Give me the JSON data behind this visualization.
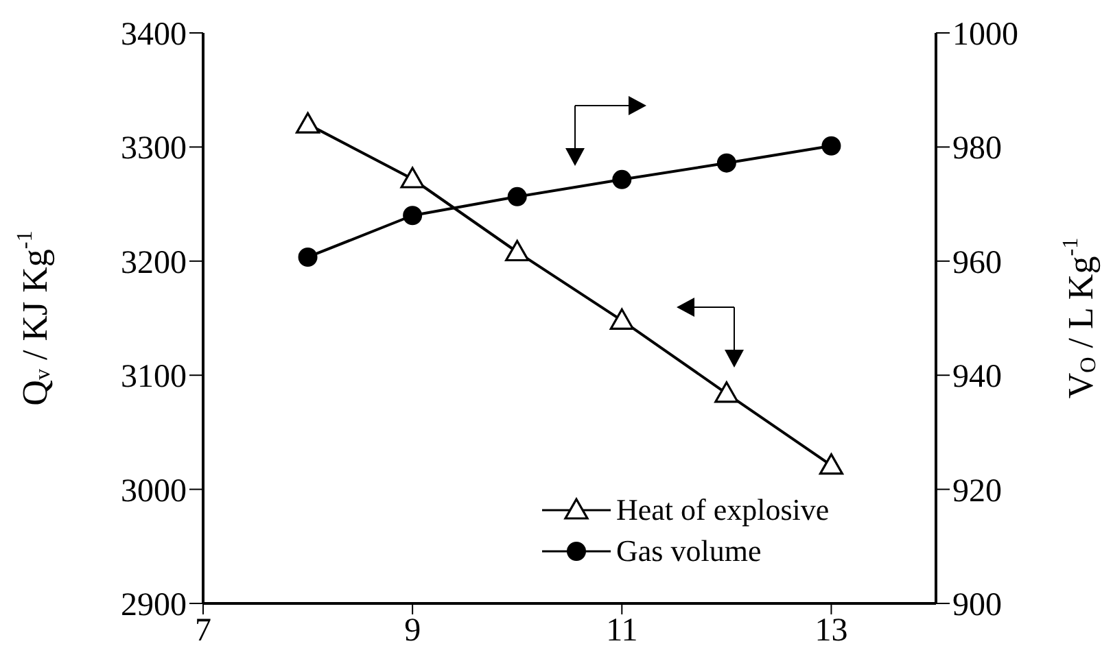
{
  "chart_data": {
    "type": "line",
    "ylabel": "Q$_{v}$ / KJ Kg$^{-1}$",
    "y2label": "V$_{O}$ / L Kg$^{-1}$",
    "x": [
      8,
      9,
      10,
      11,
      12,
      13
    ],
    "xlim": [
      7,
      14
    ],
    "xticks": [
      7,
      9,
      11,
      13
    ],
    "ylim": [
      2900,
      3400
    ],
    "yticks": [
      2900,
      3000,
      3100,
      3200,
      3300,
      3400
    ],
    "y2lim": [
      900,
      1000
    ],
    "y2ticks": [
      900,
      920,
      940,
      960,
      980,
      1000
    ],
    "series": [
      {
        "name": "Heat of explosive",
        "color": "#000000",
        "marker": "triangle",
        "values": [
          3320,
          3272,
          3208,
          3148,
          3084,
          3021
        ]
      },
      {
        "name": "Gas volume",
        "color": "#000000",
        "marker": "circle",
        "axis": "y2",
        "values": [
          960.7,
          968.0,
          971.3,
          974.3,
          977.2,
          980.2
        ]
      }
    ],
    "legend": "bottom right",
    "grid": false,
    "line_style": "solid"
  }
}
